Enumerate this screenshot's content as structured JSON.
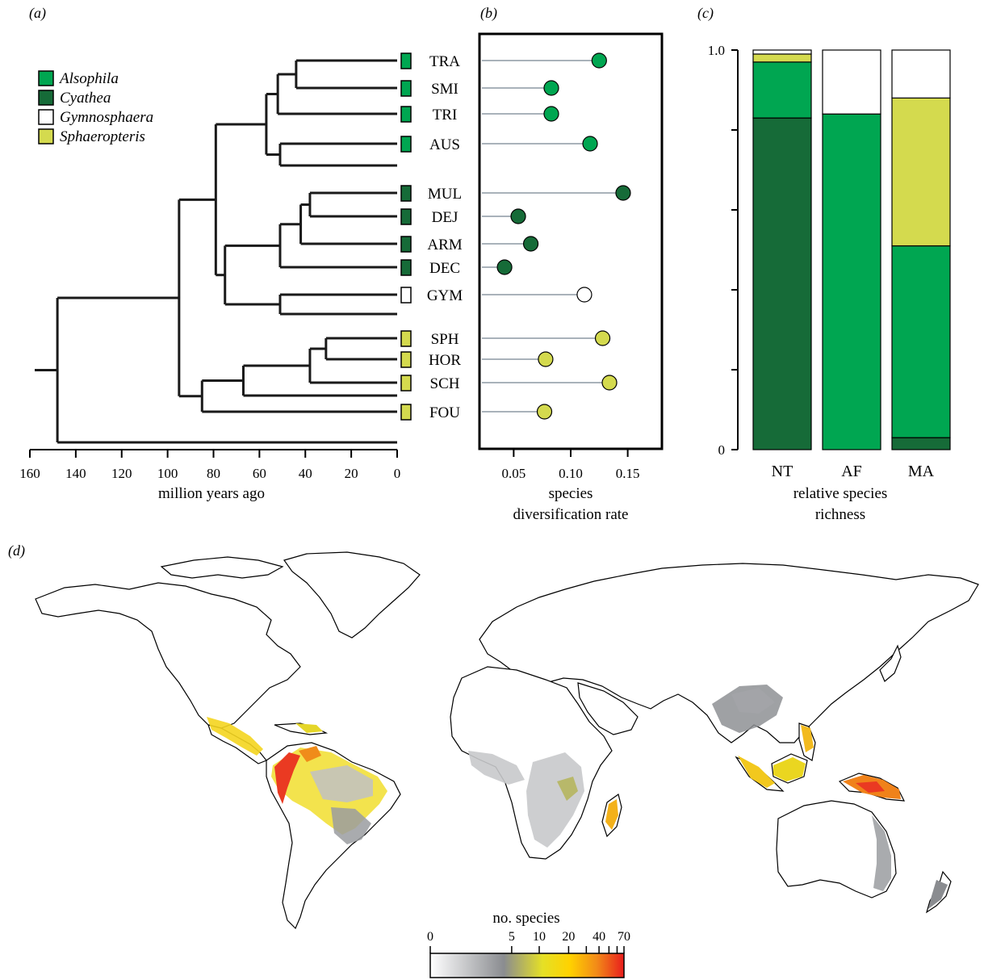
{
  "panels": {
    "a": {
      "label": "(a)"
    },
    "b": {
      "label": "(b)"
    },
    "c": {
      "label": "(c)"
    },
    "d": {
      "label": "(d)"
    }
  },
  "legend": [
    {
      "name": "Alsophila",
      "color": "#00a651"
    },
    {
      "name": "Cyathea",
      "color": "#166b38"
    },
    {
      "name": "Gymnosphaera",
      "color": "#ffffff"
    },
    {
      "name": "Sphaeropteris",
      "color": "#d4da4e"
    }
  ],
  "chart_data": [
    {
      "type": "tree",
      "xlabel": "million years ago",
      "xticks": [
        "160",
        "140",
        "120",
        "100",
        "80",
        "60",
        "40",
        "20",
        "0"
      ],
      "xlim": [
        160,
        0
      ],
      "tips": [
        {
          "label": "TRA",
          "genus": "Alsophila"
        },
        {
          "label": "SMI",
          "genus": "Alsophila"
        },
        {
          "label": "TRI",
          "genus": "Alsophila"
        },
        {
          "label": "AUS",
          "genus": "Alsophila"
        },
        {
          "label": "MUL",
          "genus": "Cyathea"
        },
        {
          "label": "DEJ",
          "genus": "Cyathea"
        },
        {
          "label": "ARM",
          "genus": "Cyathea"
        },
        {
          "label": "DEC",
          "genus": "Cyathea"
        },
        {
          "label": "GYM",
          "genus": "Gymnosphaera"
        },
        {
          "label": "SPH",
          "genus": "Sphaeropteris"
        },
        {
          "label": "HOR",
          "genus": "Sphaeropteris"
        },
        {
          "label": "SCH",
          "genus": "Sphaeropteris"
        },
        {
          "label": "FOU",
          "genus": "Sphaeropteris"
        }
      ]
    },
    {
      "type": "scatter",
      "xlabel": "species\ndiversification rate",
      "xticks": [
        "0.05",
        "0.10",
        "0.15"
      ],
      "xlim": [
        0.02,
        0.18
      ],
      "points": [
        {
          "label": "TRA",
          "value": 0.125,
          "genus": "Alsophila"
        },
        {
          "label": "SMI",
          "value": 0.083,
          "genus": "Alsophila"
        },
        {
          "label": "TRI",
          "value": 0.083,
          "genus": "Alsophila"
        },
        {
          "label": "AUS",
          "value": 0.117,
          "genus": "Alsophila"
        },
        {
          "label": "MUL",
          "value": 0.146,
          "genus": "Cyathea"
        },
        {
          "label": "DEJ",
          "value": 0.054,
          "genus": "Cyathea"
        },
        {
          "label": "ARM",
          "value": 0.065,
          "genus": "Cyathea"
        },
        {
          "label": "DEC",
          "value": 0.042,
          "genus": "Cyathea"
        },
        {
          "label": "GYM",
          "value": 0.112,
          "genus": "Gymnosphaera"
        },
        {
          "label": "SPH",
          "value": 0.128,
          "genus": "Sphaeropteris"
        },
        {
          "label": "HOR",
          "value": 0.078,
          "genus": "Sphaeropteris"
        },
        {
          "label": "SCH",
          "value": 0.134,
          "genus": "Sphaeropteris"
        },
        {
          "label": "FOU",
          "value": 0.077,
          "genus": "Sphaeropteris"
        }
      ]
    },
    {
      "type": "bar",
      "stacked": true,
      "xlabel": "relative species\nrichness",
      "yticks": [
        "1.0",
        "0"
      ],
      "ylim": [
        0,
        1
      ],
      "categories": [
        "NT",
        "AF",
        "MA"
      ],
      "series": [
        {
          "name": "Cyathea",
          "values": [
            0.83,
            0,
            0.03
          ]
        },
        {
          "name": "Alsophila",
          "values": [
            0.14,
            0.84,
            0.48
          ]
        },
        {
          "name": "Sphaeropteris",
          "values": [
            0.02,
            0,
            0.37
          ]
        },
        {
          "name": "Gymnosphaera",
          "values": [
            0.01,
            0.16,
            0.12
          ]
        }
      ]
    },
    {
      "type": "heatmap",
      "colorbar_label": "no. species",
      "colorbar_ticks": [
        "0",
        "5",
        "10",
        "20",
        "40",
        "70"
      ],
      "colorbar_colors": [
        "#ffffff",
        "#c8c9cb",
        "#8a8c90",
        "#e5e026",
        "#ffd200",
        "#f28a18",
        "#e81d1d"
      ]
    }
  ]
}
